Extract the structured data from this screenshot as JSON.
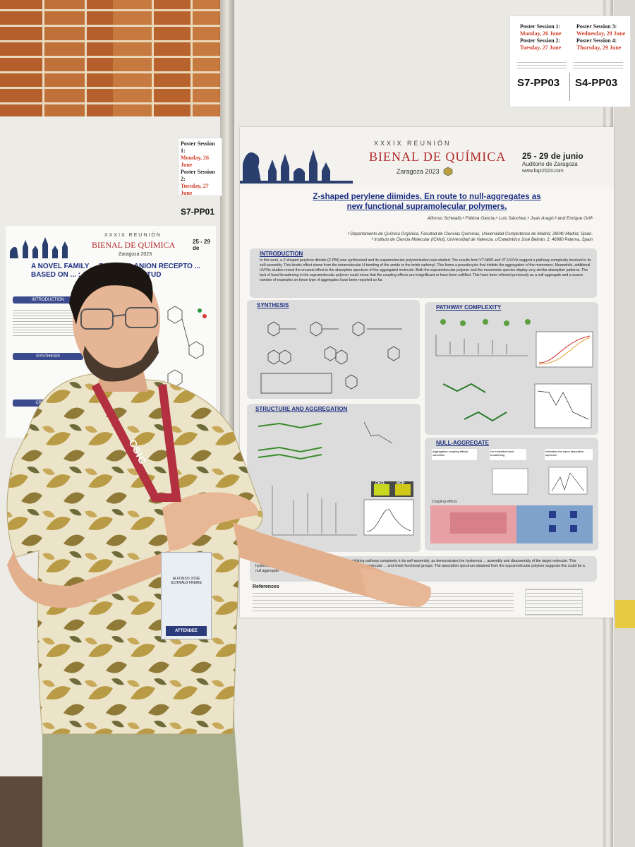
{
  "scene": {
    "left_tag": {
      "s1_label": "Poster Session 1:",
      "s1_date": "Monday, 26 June",
      "s2_label": "Poster Session 2:",
      "s2_date": "Tuesday, 27 June",
      "code": "S7-PP01"
    },
    "right_tag": {
      "s1_label": "Poster Session 1:",
      "s1_date": "Monday, 26 June",
      "s2_label": "Poster Session 2:",
      "s2_date": "Tuesday, 27 June",
      "s3_label": "Poster Session 3:",
      "s3_date": "Wednesday, 28 June",
      "s4_label": "Poster Session 4:",
      "s4_date": "Thursday, 29 June",
      "code_a": "S7-PP03",
      "code_b": "S4-PP03"
    },
    "left_poster": {
      "xxxix": "XXXIX REUNIÓN",
      "bienal": "BIENAL DE QUÍMICA",
      "zaragoza": "Zaragoza 2023",
      "title": "A NOVEL FAMILY ... BONDING ANION RECEPTO ... BASED ON ... : A COMPARATIVE STUD",
      "introduction": "INTRODUCTION",
      "synthesis": "SYNTHESIS",
      "crystallo": "CRYSTALLO",
      "dates": "25 - 29 de"
    },
    "poster": {
      "xxxix": "XXXIX REUNIÓN",
      "bienal": "BIENAL DE QUÍMICA",
      "zaragoza": "Zaragoza 2023",
      "dates": "25 - 29 de junio",
      "auditorio": "Auditorio de Zaragoza",
      "web": "www.bqz2023.com",
      "title_line1": "Z-shaped perylene diimides. En route to null-aggregates as",
      "title_line2": "new functional supramolecular polymers.",
      "authors": "Alfonso Schwalb,ᵃ Fátima García,ᵃ Luis Sánchez,ᵃ Juan Aragó,ᵇ and Enrique Ortíᵇ",
      "aff1": "ᵃ Departamento de Química Orgánica, Facultad de Ciencias Químicas, Universidad Complutense de Madrid, 28040 Madrid, Spain.",
      "aff2": "ᵇ Instituto de Ciencia Molecular (ICMol), Universidad de Valencia, c/Catedrático José Beltrán, 2, 46980 Paterna, Spain",
      "intro_header": "INTRODUCTION",
      "intro_text": "In this work, a Z-shaped perylene diimide (Z-PBI) was synthesized and its supramolecular polymerization was studied. The results from VT-NMR and VT-UV/Vis suggest a pathway complexity involved in its self-assembly. This kinetic effect stems from the intramolecular H-bonding of the amide to the imide carbonyl. This forms a pseudocycle that inhibits the aggregation of the monomers. Meanwhile, additional UV/Vis studies reveal the unusual effect in the absorption spectrum of the aggregated molecule. Both the supramolecular polymer and the monomeric species display very similar absorption patterns. The lack of band broadening in the supramolecular polymer could mean that the coupling effects are insignificant or have been nullified. This have been referred previously as a null aggregate and a scarce number of examples on these type of aggregates have been reported so far.",
      "synthesis_header": "SYNTHESIS",
      "pathway_header": "PATHWAY COMPLEXITY",
      "structure_header": "STRUCTURE AND AGGREGATION",
      "null_header": "NULL-AGGREGATE",
      "chcl3": "CHCl₃",
      "mch": "MCH",
      "conclusion_text": "Z-shaped ... a new template for supramolecular polymers exhibiting pathway complexity in its self-assembly; as demonstrates the hysteresis ... assembly and disassembly of the target molecule. This hysteresis is produced by the formation of a pseudocycle by the intramolecular ... and imide functional groups. The absorption spectrum obtained from the supramolecular polymer suggests this could be a null aggregate.",
      "references_header": "References",
      "coupling_effects": "Coupling effects",
      "null_box1": "Aggregation coupling effects cancelled",
      "null_box2": "No excitation band broadening",
      "null_box3": "Maintains the same absorption spectrum"
    },
    "lanyard": "CSIC",
    "badge": {
      "name": "ALFONSO JOSÉ SCHWALB FREIRE",
      "role": "ATTENDEE"
    }
  }
}
